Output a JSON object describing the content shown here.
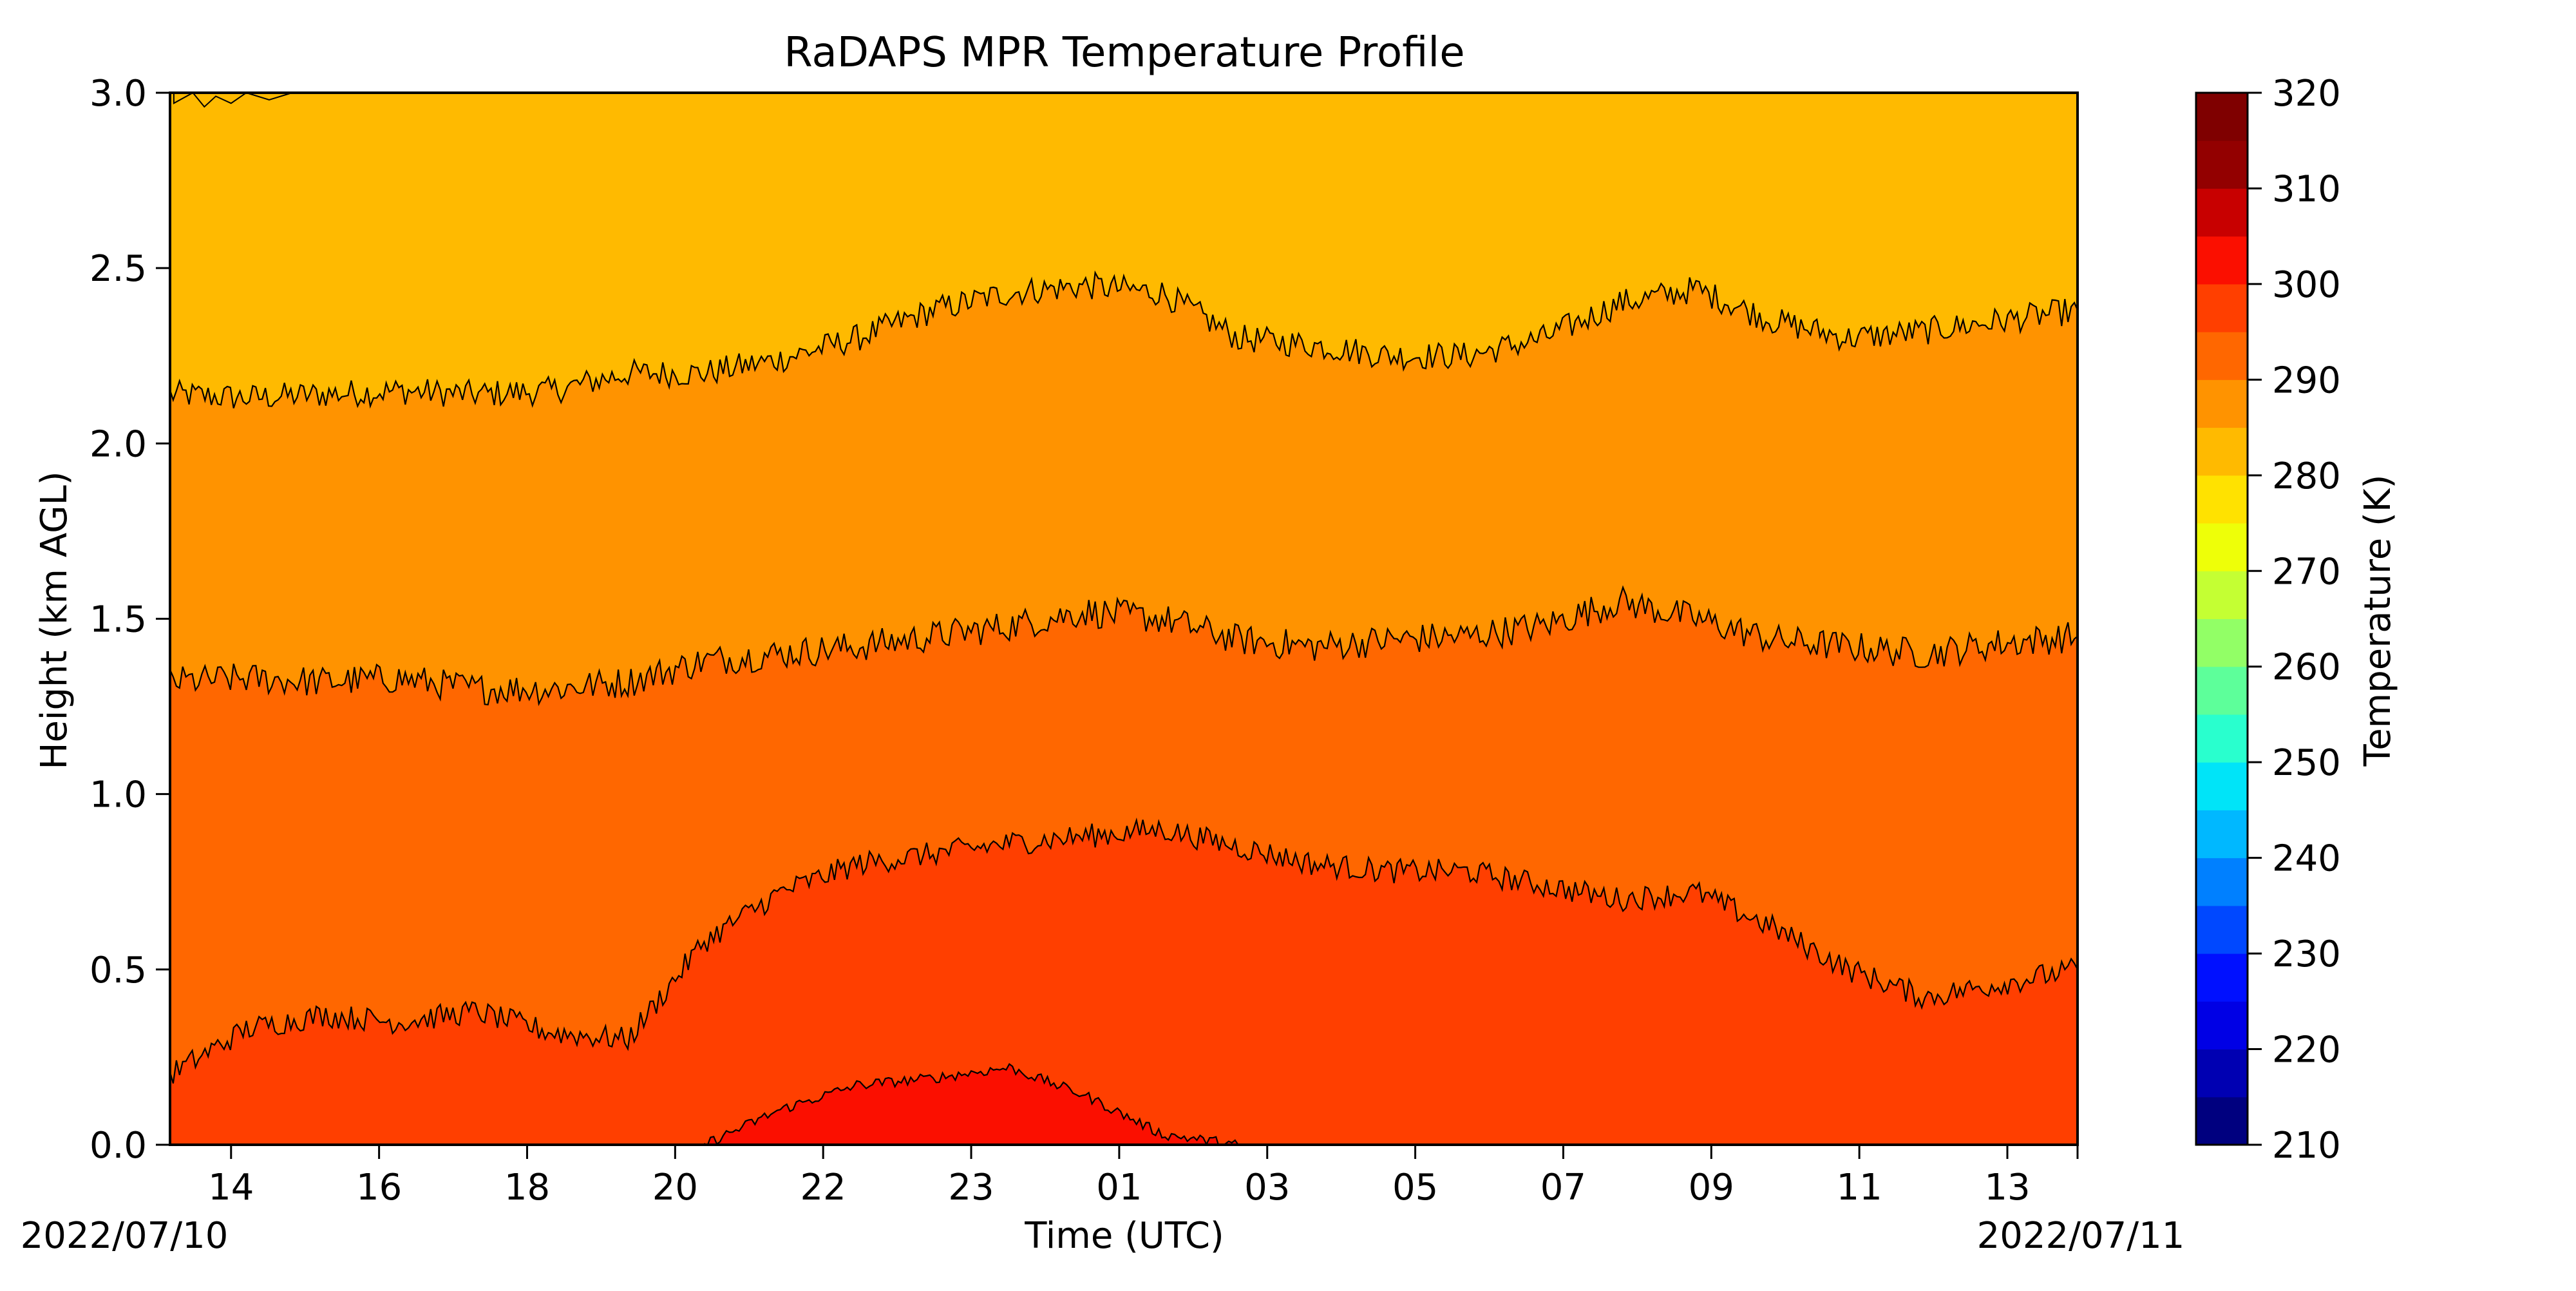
{
  "chart_data": {
    "type": "contour",
    "title": "RaDAPS MPR Temperature Profile",
    "xlabel": "Time (UTC)",
    "ylabel": "Height (km AGL)",
    "x_ticks": [
      "14",
      "16",
      "18",
      "20",
      "22",
      "23",
      "01",
      "03",
      "05",
      "07",
      "09",
      "11",
      "13"
    ],
    "date_start_label": "2022/07/10",
    "date_end_label": "2022/07/11",
    "ylim": [
      0.0,
      3.0
    ],
    "y_ticks": [
      "0.0",
      "0.5",
      "1.0",
      "1.5",
      "2.0",
      "2.5",
      "3.0"
    ],
    "colorbar": {
      "label": "Temperature (K)",
      "range": [
        210,
        320
      ],
      "step": 5,
      "tick_labels": [
        "210",
        "220",
        "230",
        "240",
        "250",
        "260",
        "270",
        "280",
        "290",
        "300",
        "310",
        "320"
      ],
      "colors": [
        "#00007f",
        "#0000b2",
        "#0000e5",
        "#0010ff",
        "#0048ff",
        "#0080ff",
        "#00b8ff",
        "#00e4f8",
        "#29ffce",
        "#5dff9a",
        "#92ff66",
        "#c4ff33",
        "#eeff08",
        "#ffe200",
        "#ffba00",
        "#ff9300",
        "#ff6700",
        "#ff3f00",
        "#fb0f00",
        "#c80000",
        "#930000",
        "#7f0000"
      ]
    },
    "contour_levels_K": [
      280,
      285,
      290,
      295,
      300
    ],
    "contour_heights_km": {
      "x_hours_since_start": [
        0,
        1,
        2,
        3,
        4,
        5,
        6,
        7,
        8,
        9,
        10,
        11,
        12,
        13,
        14,
        15,
        16,
        17,
        18,
        19,
        20,
        21,
        22,
        23,
        24,
        25
      ],
      "k300_top": [
        null,
        null,
        null,
        null,
        null,
        null,
        null,
        0.0,
        0.1,
        0.17,
        0.19,
        0.22,
        0.14,
        0.03,
        0.0,
        null,
        null,
        null,
        null,
        null,
        null,
        null,
        null,
        null,
        null,
        null
      ],
      "k295_top": [
        0.2,
        0.33,
        0.37,
        0.35,
        0.38,
        0.32,
        0.3,
        0.58,
        0.72,
        0.8,
        0.83,
        0.86,
        0.88,
        0.9,
        0.85,
        0.8,
        0.78,
        0.78,
        0.74,
        0.7,
        0.72,
        0.62,
        0.5,
        0.42,
        0.46,
        0.5
      ],
      "k290_top": [
        1.32,
        1.33,
        1.32,
        1.33,
        1.3,
        1.3,
        1.32,
        1.38,
        1.4,
        1.42,
        1.45,
        1.48,
        1.52,
        1.5,
        1.44,
        1.42,
        1.44,
        1.45,
        1.48,
        1.55,
        1.5,
        1.44,
        1.42,
        1.4,
        1.43,
        1.45
      ],
      "k285_top": [
        2.14,
        2.13,
        2.14,
        2.15,
        2.14,
        2.15,
        2.2,
        2.2,
        2.24,
        2.3,
        2.38,
        2.43,
        2.45,
        2.43,
        2.3,
        2.28,
        2.25,
        2.25,
        2.3,
        2.4,
        2.44,
        2.35,
        2.3,
        2.32,
        2.35,
        2.38
      ]
    },
    "near_top_cooler_patch_K": 280
  }
}
